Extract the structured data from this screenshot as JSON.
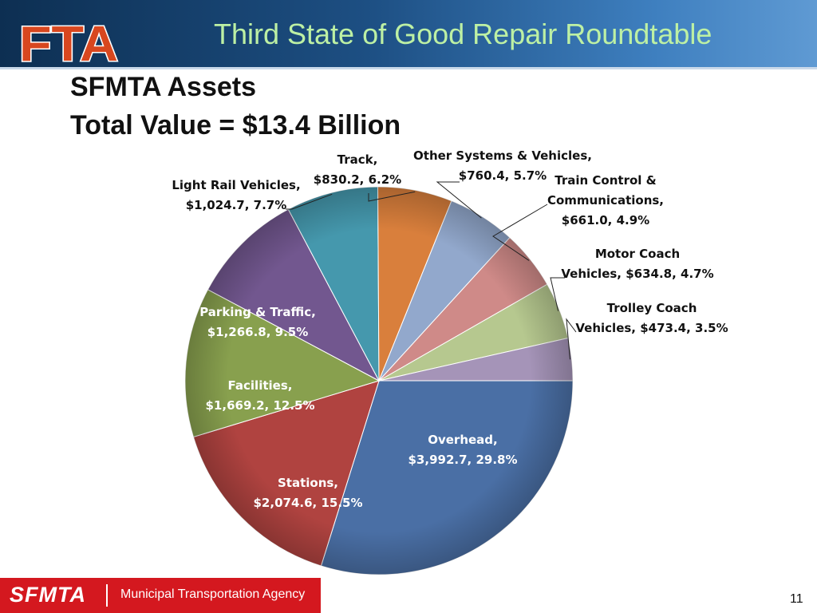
{
  "header": {
    "logo_text": "FTA",
    "title": "Third State of Good Repair Roundtable"
  },
  "slide": {
    "title_line1": "SFMTA Assets",
    "title_line2": "Total Value = $13.4 Billion"
  },
  "chart_data": {
    "type": "pie",
    "title": "",
    "slices": [
      {
        "name": "Overhead",
        "value": 3992.7,
        "percent": 29.8,
        "color": "#4a6fa5",
        "label_lines": [
          "Overhead,",
          "$3,992.7, 29.8%"
        ],
        "label_color": "#ffffff"
      },
      {
        "name": "Stations",
        "value": 2074.6,
        "percent": 15.5,
        "color": "#b04340",
        "label_lines": [
          "Stations,",
          "$2,074.6, 15.5%"
        ],
        "label_color": "#ffffff"
      },
      {
        "name": "Facilities",
        "value": 1669.2,
        "percent": 12.5,
        "color": "#88a04e",
        "label_lines": [
          "Facilities,",
          "$1,669.2, 12.5%"
        ],
        "label_color": "#ffffff"
      },
      {
        "name": "Parking & Traffic",
        "value": 1266.8,
        "percent": 9.5,
        "color": "#72578f",
        "label_lines": [
          "Parking & Traffic,",
          "$1,266.8, 9.5%"
        ],
        "label_color": "#ffffff"
      },
      {
        "name": "Light Rail Vehicles",
        "value": 1024.7,
        "percent": 7.7,
        "color": "#4598ad",
        "label_lines": [
          "Light Rail Vehicles,",
          "$1,024.7, 7.7%"
        ],
        "label_color": "#111111"
      },
      {
        "name": "Track",
        "value": 830.2,
        "percent": 6.2,
        "color": "#d97f3c",
        "label_lines": [
          "Track,",
          "$830.2, 6.2%"
        ],
        "label_color": "#111111"
      },
      {
        "name": "Other Systems & Vehicles",
        "value": 760.4,
        "percent": 5.7,
        "color": "#92a8cc",
        "label_lines": [
          "Other Systems & Vehicles,",
          "$760.4, 5.7%"
        ],
        "label_color": "#111111"
      },
      {
        "name": "Train Control & Communications",
        "value": 661.0,
        "percent": 4.9,
        "color": "#cf8a88",
        "label_lines": [
          "Train Control &",
          "Communications,",
          "$661.0, 4.9%"
        ],
        "label_color": "#111111"
      },
      {
        "name": "Motor Coach Vehicles",
        "value": 634.8,
        "percent": 4.7,
        "color": "#b6c88f",
        "label_lines": [
          "Motor Coach",
          "Vehicles, $634.8, 4.7%"
        ],
        "label_color": "#111111"
      },
      {
        "name": "Trolley Coach Vehicles",
        "value": 473.4,
        "percent": 3.5,
        "color": "#a594b8",
        "label_lines": [
          "Trolley Coach",
          "Vehicles, $473.4, 3.5%"
        ],
        "label_color": "#111111"
      }
    ]
  },
  "footer": {
    "logo_text": "SFMTA",
    "agency": "Municipal Transportation Agency",
    "page_number": "11"
  }
}
